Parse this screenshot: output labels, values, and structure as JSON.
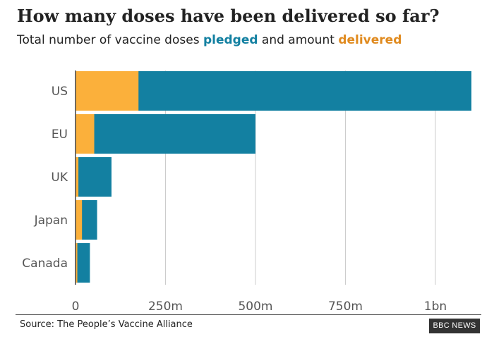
{
  "chart_data": {
    "type": "bar",
    "orientation": "horizontal",
    "title": "How many doses have been delivered so far?",
    "subtitle": {
      "prefix": "Total number of vaccine doses",
      "pledged_word": "pledged",
      "middle": "and amount",
      "delivered_word": "delivered"
    },
    "categories": [
      "US",
      "EU",
      "UK",
      "Japan",
      "Canada"
    ],
    "series": [
      {
        "name": "pledged",
        "values": [
          1100,
          500,
          100,
          60,
          40
        ]
      },
      {
        "name": "delivered",
        "values": [
          175,
          52,
          8,
          18,
          5
        ]
      }
    ],
    "xlim": [
      0,
      1100
    ],
    "xticks": [
      {
        "value": 0,
        "label": "0"
      },
      {
        "value": 250,
        "label": "250m"
      },
      {
        "value": 500,
        "label": "500m"
      },
      {
        "value": 750,
        "label": "750m"
      },
      {
        "value": 1000,
        "label": "1bn"
      }
    ],
    "grid": true,
    "colors": {
      "pledged": "#1380a1",
      "delivered": "#fbb03b"
    },
    "source": "Source: The People’s Vaccine Alliance",
    "logo": "BBC NEWS"
  }
}
